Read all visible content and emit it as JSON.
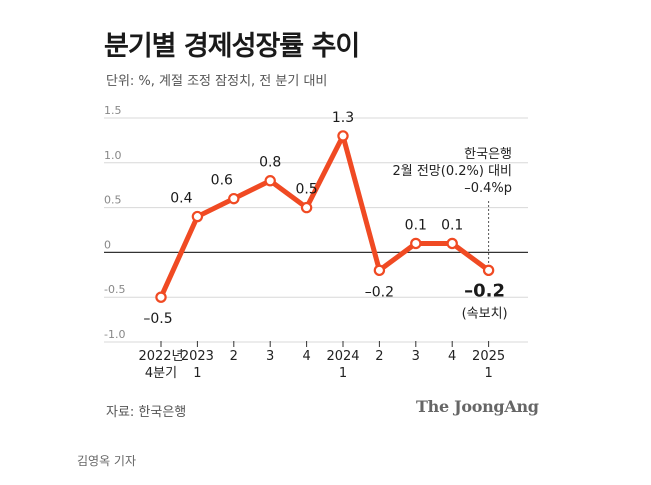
{
  "title": "분기별 경제성장률 추이",
  "subtitle": "단위: %, 계절 조정 잠정치, 전 분기 대비",
  "source": "자료: 한국은행",
  "logo": "The JoongAng",
  "reporter": "김영옥 기자",
  "chart_data": {
    "type": "line",
    "title": "분기별 경제성장률 추이",
    "ylabel": "%",
    "ylim": [
      -1.0,
      1.5
    ],
    "yticks": [
      "1.5",
      "1.0",
      "0.5",
      "0",
      "-0.5",
      "-1.0"
    ],
    "categories": [
      [
        "2022년",
        "4분기"
      ],
      [
        "2023",
        "1"
      ],
      [
        "2"
      ],
      [
        "3"
      ],
      [
        "4"
      ],
      [
        "2024",
        "1"
      ],
      [
        "2"
      ],
      [
        "3"
      ],
      [
        "4"
      ],
      [
        "2025",
        "1"
      ]
    ],
    "values": [
      -0.5,
      0.4,
      0.6,
      0.8,
      0.5,
      1.3,
      -0.2,
      0.1,
      0.1,
      -0.2
    ],
    "value_labels": [
      "–0.5",
      "0.4",
      "0.6",
      "0.8",
      "0.5",
      "1.3",
      "–0.2",
      "0.1",
      "0.1",
      "–0.2"
    ],
    "last_point_note": "(속보치)",
    "annotation": [
      "한국은행",
      "2월 전망(0.2%) 대비",
      "–0.4%p"
    ],
    "line_color": "#f04a23",
    "axis_color": "#333333",
    "grid_color": "#d8d8d8"
  }
}
